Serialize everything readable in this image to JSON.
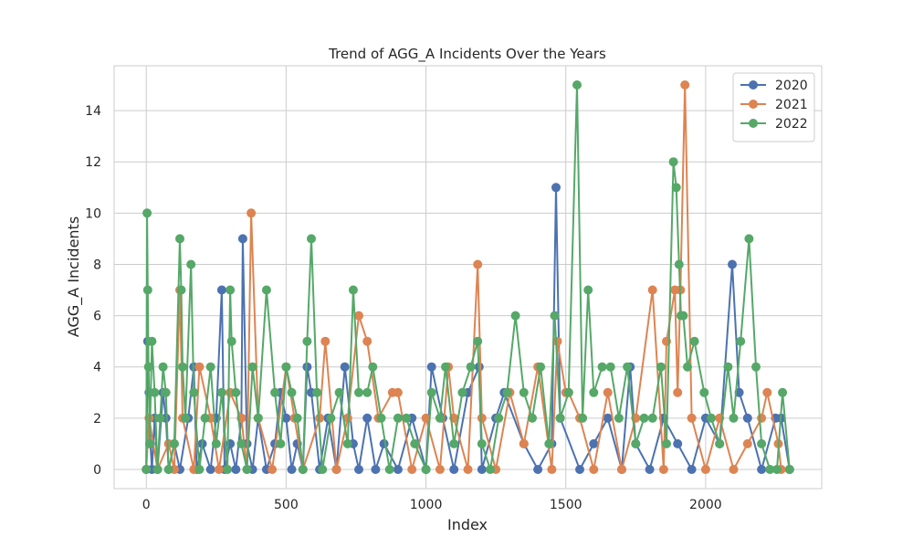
{
  "chart_data": {
    "type": "line",
    "title": "Trend of AGG_A Incidents Over the Years",
    "xlabel": "Index",
    "ylabel": "AGG_A Incidents",
    "xlim": [
      -115,
      2415
    ],
    "ylim": [
      -0.75,
      15.75
    ],
    "xticks": [
      0,
      500,
      1000,
      1500,
      2000
    ],
    "yticks": [
      0,
      2,
      4,
      6,
      8,
      10,
      12,
      14
    ],
    "grid": true,
    "legend_position": "top-right",
    "marker": "circle",
    "series": [
      {
        "name": "2020",
        "color": "#4c72b0",
        "x": [
          0,
          5,
          10,
          15,
          20,
          30,
          40,
          60,
          70,
          80,
          100,
          120,
          150,
          170,
          180,
          200,
          230,
          250,
          270,
          280,
          300,
          320,
          340,
          345,
          360,
          380,
          400,
          430,
          460,
          480,
          500,
          520,
          540,
          560,
          575,
          590,
          620,
          650,
          680,
          710,
          740,
          760,
          790,
          820,
          850,
          900,
          950,
          1000,
          1020,
          1060,
          1100,
          1150,
          1190,
          1200,
          1250,
          1280,
          1350,
          1400,
          1450,
          1465,
          1480,
          1550,
          1600,
          1650,
          1700,
          1730,
          1750,
          1800,
          1850,
          1900,
          1950,
          2000,
          2050,
          2095,
          2120,
          2150,
          2200,
          2250,
          2270,
          2300
        ],
        "y": [
          0,
          5,
          3,
          1,
          0,
          2,
          0,
          3,
          2,
          0,
          1,
          0,
          2,
          4,
          0,
          1,
          0,
          2,
          7,
          0,
          1,
          0,
          2,
          9,
          1,
          0,
          2,
          0,
          1,
          3,
          2,
          0,
          1,
          0,
          4,
          3,
          0,
          2,
          0,
          4,
          1,
          0,
          2,
          0,
          1,
          0,
          2,
          0,
          4,
          2,
          0,
          3,
          4,
          0,
          2,
          3,
          1,
          0,
          1,
          11,
          2,
          0,
          1,
          2,
          0,
          4,
          1,
          0,
          2,
          1,
          0,
          2,
          1,
          8,
          3,
          2,
          0,
          2,
          2,
          0
        ]
      },
      {
        "name": "2021",
        "color": "#dd8452",
        "x": [
          0,
          10,
          40,
          80,
          100,
          120,
          130,
          170,
          190,
          230,
          260,
          300,
          340,
          360,
          375,
          400,
          450,
          500,
          530,
          560,
          620,
          640,
          680,
          720,
          760,
          790,
          830,
          880,
          900,
          950,
          1000,
          1050,
          1080,
          1100,
          1150,
          1185,
          1200,
          1250,
          1300,
          1350,
          1400,
          1450,
          1470,
          1500,
          1510,
          1550,
          1600,
          1650,
          1700,
          1750,
          1810,
          1850,
          1860,
          1890,
          1900,
          1910,
          1926,
          1950,
          2000,
          2050,
          2100,
          2150,
          2200,
          2220,
          2260,
          2270,
          2300
        ],
        "y": [
          0,
          2,
          0,
          1,
          0,
          7,
          2,
          0,
          4,
          2,
          0,
          3,
          2,
          0,
          10,
          2,
          0,
          4,
          2,
          0,
          2,
          5,
          0,
          2,
          6,
          5,
          2,
          3,
          3,
          0,
          2,
          0,
          4,
          2,
          0,
          8,
          2,
          0,
          3,
          1,
          4,
          0,
          5,
          3,
          3,
          2,
          0,
          3,
          0,
          2,
          7,
          0,
          5,
          7,
          3,
          7,
          15,
          2,
          0,
          2,
          0,
          1,
          2,
          3,
          1,
          0,
          0
        ]
      },
      {
        "name": "2022",
        "color": "#55a868",
        "x": [
          0,
          3,
          5,
          8,
          12,
          20,
          30,
          40,
          50,
          60,
          70,
          80,
          100,
          120,
          125,
          130,
          140,
          160,
          170,
          190,
          210,
          230,
          250,
          270,
          290,
          300,
          305,
          320,
          340,
          360,
          380,
          400,
          430,
          460,
          480,
          500,
          520,
          540,
          560,
          575,
          590,
          610,
          630,
          660,
          690,
          720,
          740,
          760,
          790,
          810,
          840,
          870,
          900,
          930,
          960,
          1000,
          1020,
          1050,
          1070,
          1100,
          1130,
          1160,
          1185,
          1200,
          1230,
          1260,
          1290,
          1320,
          1350,
          1380,
          1410,
          1440,
          1460,
          1480,
          1510,
          1540,
          1560,
          1580,
          1600,
          1630,
          1660,
          1690,
          1720,
          1750,
          1780,
          1810,
          1840,
          1860,
          1885,
          1895,
          1905,
          1912,
          1920,
          1935,
          1960,
          1995,
          2020,
          2050,
          2080,
          2100,
          2125,
          2155,
          2180,
          2200,
          2230,
          2255,
          2275,
          2300
        ],
        "y": [
          0,
          10,
          7,
          4,
          1,
          5,
          3,
          0,
          2,
          4,
          3,
          0,
          1,
          9,
          7,
          4,
          2,
          8,
          3,
          0,
          2,
          4,
          1,
          3,
          0,
          7,
          5,
          3,
          1,
          0,
          4,
          2,
          7,
          3,
          1,
          4,
          3,
          2,
          0,
          5,
          9,
          3,
          0,
          2,
          3,
          1,
          7,
          3,
          3,
          4,
          2,
          0,
          2,
          2,
          1,
          0,
          3,
          2,
          4,
          1,
          3,
          4,
          5,
          1,
          0,
          2,
          3,
          6,
          3,
          2,
          4,
          1,
          6,
          2,
          3,
          15,
          2,
          7,
          3,
          4,
          4,
          2,
          4,
          1,
          2,
          2,
          4,
          1,
          12,
          11,
          8,
          6,
          6,
          4,
          5,
          3,
          2,
          1,
          4,
          2,
          5,
          9,
          4,
          1,
          0,
          0,
          3,
          0
        ]
      }
    ]
  }
}
